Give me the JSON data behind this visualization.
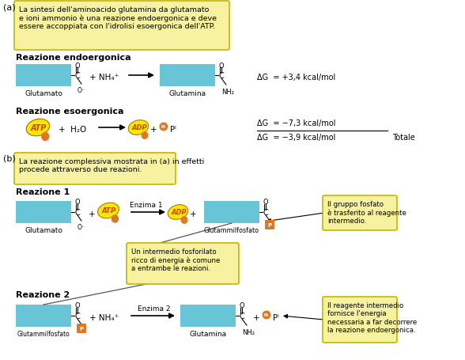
{
  "bg_color": "#ffffff",
  "cyan_color": "#68c5d8",
  "yellow_bg": "#f7f2a0",
  "orange_color": "#e07820",
  "yellow_border": "#c8b400",
  "dG1": "ΔG  = +3,4 kcal/mol",
  "dG2": "ΔG  = −7,3 kcal/mol",
  "dG3": "ΔG  = −3,9 kcal/mol",
  "totale": "Totale",
  "enzima1": "Enzima 1",
  "enzima2": "Enzima 2",
  "nh4plus": "NH₄⁺",
  "h2o": "H₂O",
  "adp_text": "ADP",
  "atp_text": "ATP",
  "nh2_text": "NH₂",
  "title_a": "La sintesi dell'aminoacido glutamina da glutamato\ne ioni ammonio è una reazione endoergonica e deve\nessere accoppiata con l'idrolisi esoergonica dell'ATP.",
  "title_b": "La reazione complessiva mostrata in (a) in effetti\nprocede attraverso due reazioni.",
  "note1": "Il gruppo fosfato\nè trasferito al reagente\nintermedio.",
  "note2": "Un intermedio fosforilato\nricco di energia è comune\na entrambe le reazioni.",
  "note3": "Il reagente intermedio\nfornisce l'energia\nnecessaria a far decorrere\nla reazione endoergonica.",
  "lbl_endoergonica": "Reazione endoergonica",
  "lbl_esoergonica": "Reazione esoergonica",
  "lbl_reazione1": "Reazione 1",
  "lbl_reazione2": "Reazione 2",
  "lbl_glutamato": "Glutamato",
  "lbl_glutamina": "Glutamina",
  "lbl_glutammilfosfato": "Glutammilfosfato"
}
